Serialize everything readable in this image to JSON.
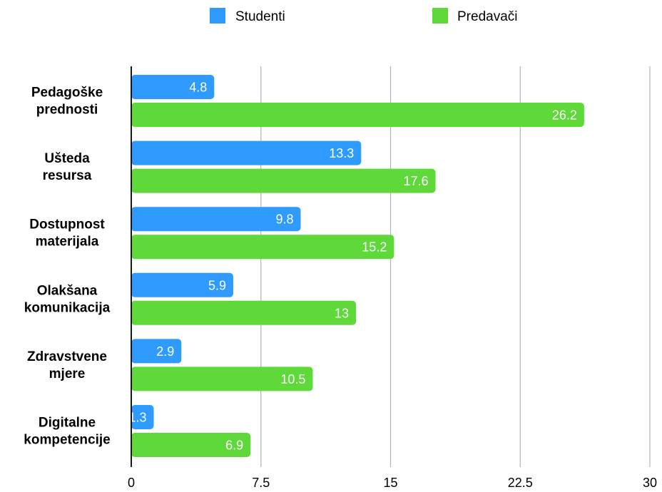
{
  "chart_data": {
    "type": "bar",
    "orientation": "horizontal",
    "categories": [
      [
        "Pedagoške",
        "prednosti"
      ],
      [
        "Ušteda",
        "resursa"
      ],
      [
        "Dostupnost",
        "materijala"
      ],
      [
        "Olakšana",
        "komunikacija"
      ],
      [
        "Zdravstvene",
        "mjere"
      ],
      [
        "Digitalne",
        "kompetencije"
      ]
    ],
    "series": [
      {
        "name": "Studenti",
        "color": "#2f9bff",
        "values": [
          4.8,
          13.3,
          9.8,
          5.9,
          2.9,
          1.3
        ],
        "labels": [
          "4.8",
          "13.3",
          "9.8",
          "5.9",
          "2.9",
          "1.3"
        ]
      },
      {
        "name": "Predavači",
        "color": "#5fd93a",
        "values": [
          26.2,
          17.6,
          15.2,
          13,
          10.5,
          6.9
        ],
        "labels": [
          "26.2",
          "17.6",
          "15.2",
          "13",
          "10.5",
          "6.9"
        ]
      }
    ],
    "xlim": [
      0,
      30
    ],
    "xticks": [
      0,
      7.5,
      15,
      22.5,
      30
    ],
    "xtick_labels": [
      "0",
      "7.5",
      "15",
      "22.5",
      "30"
    ],
    "grid": true,
    "legend_position": "top-center",
    "title": "",
    "xlabel": "",
    "ylabel": ""
  }
}
